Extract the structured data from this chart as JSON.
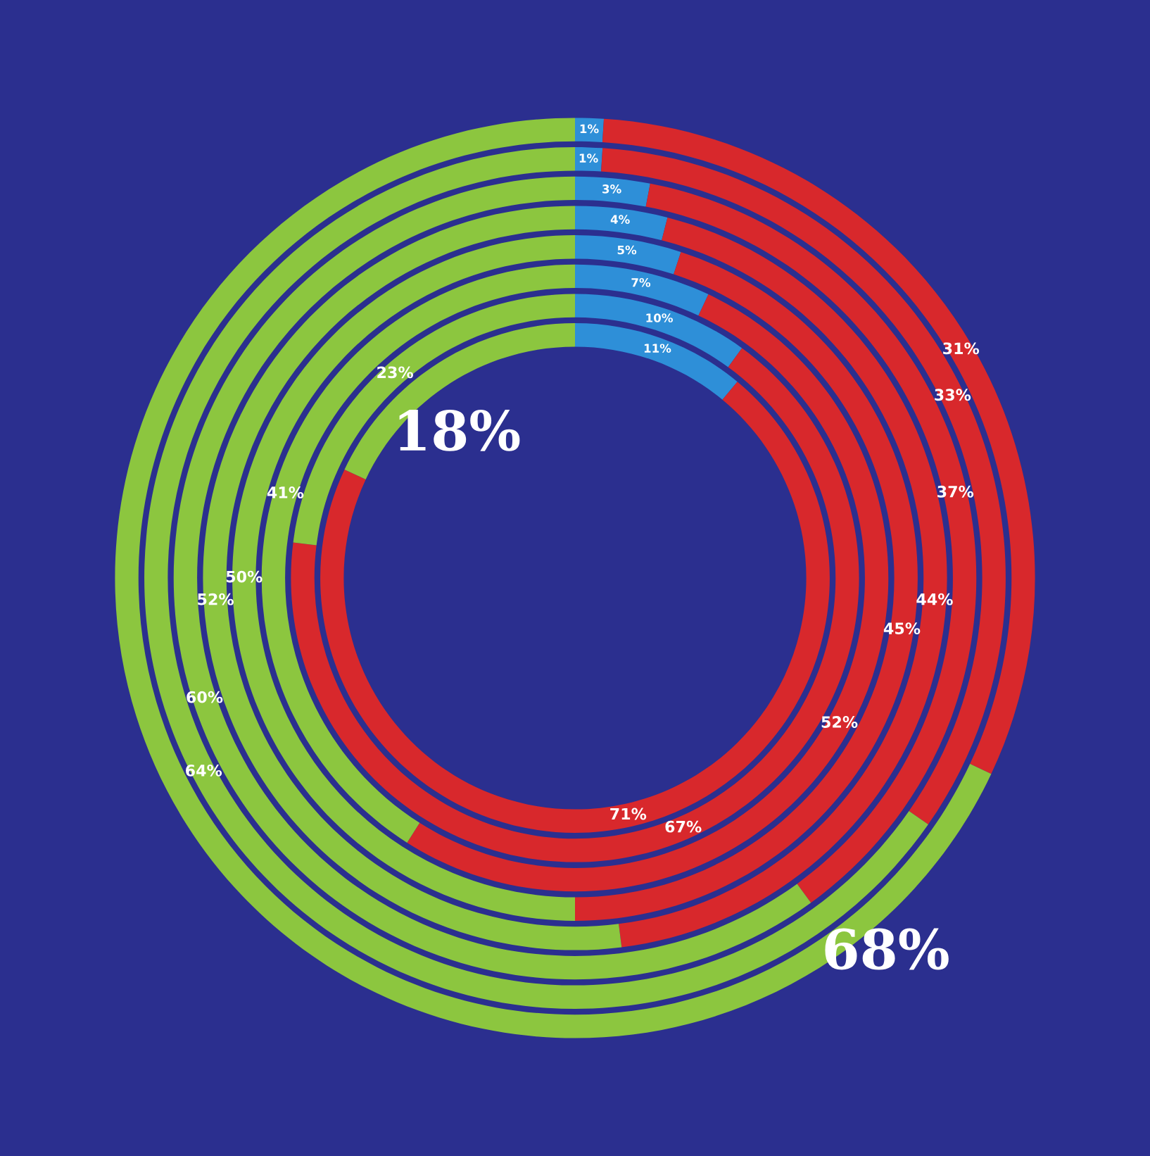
{
  "chart_data": {
    "type": "donut",
    "categories": [
      null,
      null,
      null
    ],
    "colors": [
      "#2e8fd8",
      "#d8282c",
      "#8cc63f"
    ],
    "series": [
      {
        "values": [
          11,
          71,
          18
        ],
        "value_labels": [
          "11%",
          "71%",
          "18%"
        ]
      },
      {
        "values": [
          10,
          67,
          23
        ],
        "value_labels": [
          "10%",
          "67%",
          "23%"
        ]
      },
      {
        "values": [
          7,
          52,
          41
        ],
        "value_labels": [
          "7%",
          "52%",
          "41%"
        ]
      },
      {
        "values": [
          5,
          45,
          50
        ],
        "value_labels": [
          "5%",
          "45%",
          "50%"
        ]
      },
      {
        "values": [
          4,
          44,
          52
        ],
        "value_labels": [
          "4%",
          "44%",
          "52%"
        ]
      },
      {
        "values": [
          3,
          37,
          60
        ],
        "value_labels": [
          "3%",
          "37%",
          "60%"
        ]
      },
      {
        "values": [
          1,
          33,
          64
        ],
        "value_labels": [
          "1%",
          "33%",
          "64%"
        ]
      },
      {
        "values": [
          1,
          31,
          68
        ],
        "value_labels": [
          "1%",
          "31%",
          "68%"
        ]
      }
    ]
  }
}
